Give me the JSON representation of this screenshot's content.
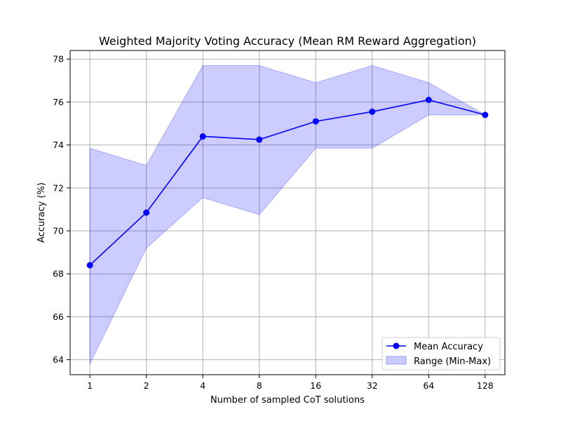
{
  "chart_data": {
    "type": "line",
    "title": "Weighted Majority Voting Accuracy (Mean RM Reward Aggregation)",
    "xlabel": "Number of sampled CoT solutions",
    "ylabel": "Accuracy (%)",
    "x_scale": "log2",
    "x": [
      1,
      2,
      4,
      8,
      16,
      32,
      64,
      128
    ],
    "x_tick_labels": [
      "1",
      "2",
      "4",
      "8",
      "16",
      "32",
      "64",
      "128"
    ],
    "ylim": [
      63.3,
      78.4
    ],
    "y_ticks": [
      64,
      66,
      68,
      70,
      72,
      74,
      76,
      78
    ],
    "y_tick_labels": [
      "64",
      "66",
      "68",
      "70",
      "72",
      "74",
      "76",
      "78"
    ],
    "grid": true,
    "legend_position": "lower-right",
    "series": [
      {
        "name": "Mean Accuracy",
        "kind": "line-marker",
        "color": "#0000ff",
        "values": [
          68.4,
          70.85,
          74.4,
          74.25,
          75.1,
          75.55,
          76.1,
          75.4
        ]
      },
      {
        "name": "Range (Min-Max)",
        "kind": "band",
        "color": "#0000ff",
        "opacity": 0.2,
        "min": [
          63.8,
          69.2,
          71.55,
          70.75,
          73.85,
          73.85,
          75.4,
          75.4
        ],
        "max": [
          73.85,
          73.05,
          77.7,
          77.7,
          76.9,
          77.7,
          76.9,
          75.4
        ]
      }
    ]
  }
}
